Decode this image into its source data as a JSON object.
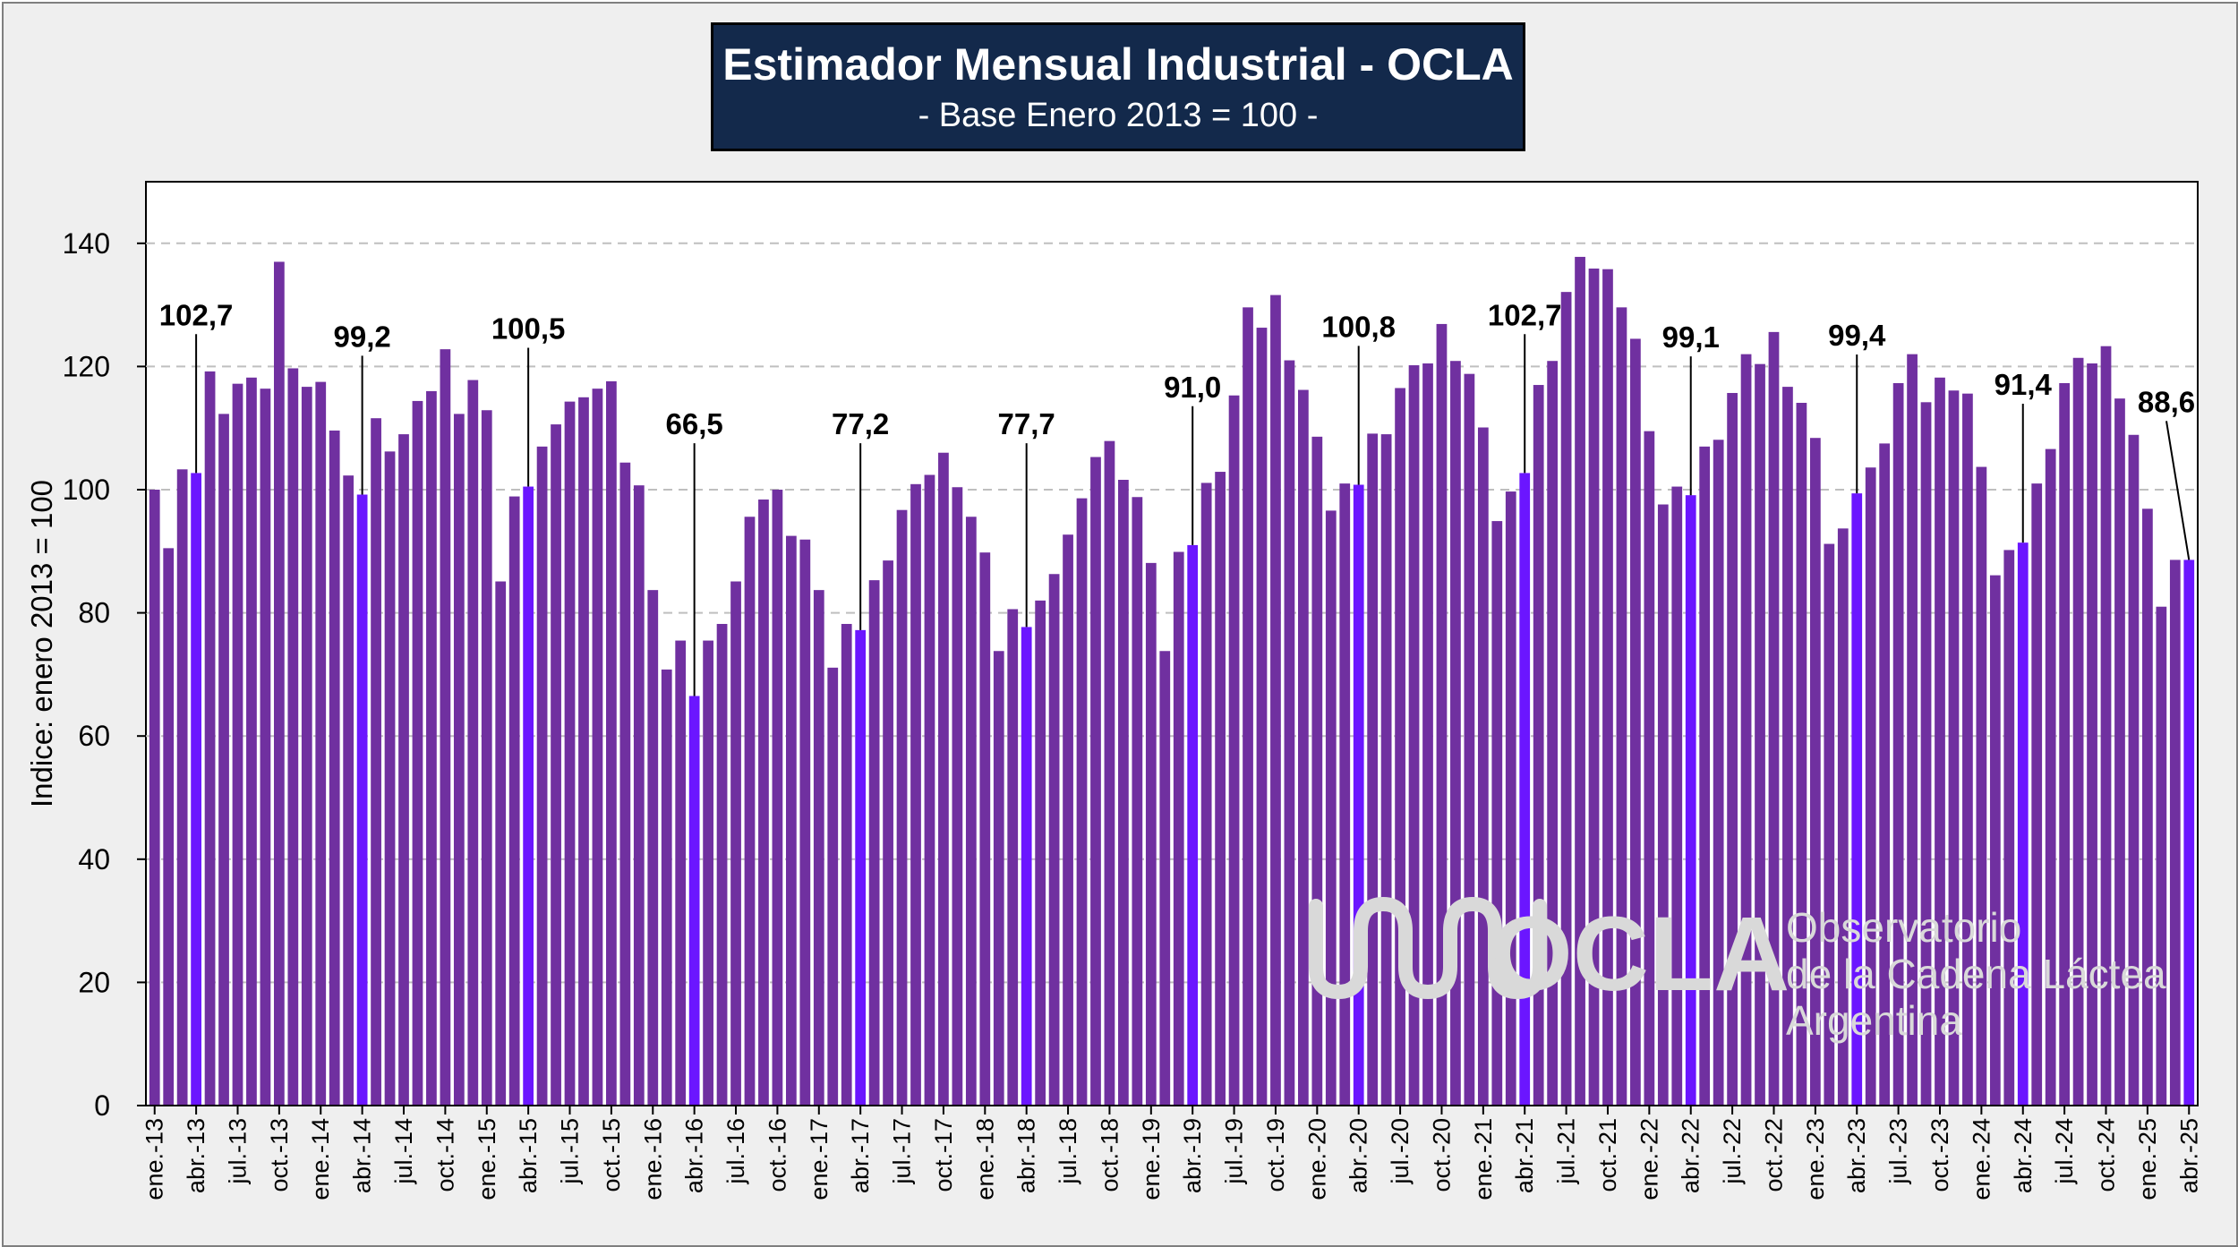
{
  "header": {
    "title": "Estimador Mensual Industrial - OCLA",
    "subtitle": "- Base Enero 2013 = 100 -"
  },
  "watermark": {
    "name": "OCLA",
    "line1": "Observatorio",
    "line2": "de la Cadena Láctea",
    "line3": "Argentina"
  },
  "colors": {
    "bar": "#7030a0",
    "highlight": "#6b16ff",
    "title_bg": "#13294b",
    "plot_bg": "#ffffff",
    "frame_bg": "#efefef",
    "grid": "#bfbfbf"
  },
  "chart_data": {
    "type": "bar",
    "ylabel": "Indice: enero 2013 = 100",
    "ylim": [
      0,
      150
    ],
    "yticks": [
      0,
      20,
      40,
      60,
      80,
      100,
      120,
      140
    ],
    "grid": "horizontal dashed",
    "categories": [
      "ene.-13",
      "feb.-13",
      "mar.-13",
      "abr.-13",
      "may.-13",
      "jun.-13",
      "jul.-13",
      "ago.-13",
      "sep.-13",
      "oct.-13",
      "nov.-13",
      "dic.-13",
      "ene.-14",
      "feb.-14",
      "mar.-14",
      "abr.-14",
      "may.-14",
      "jun.-14",
      "jul.-14",
      "ago.-14",
      "sep.-14",
      "oct.-14",
      "nov.-14",
      "dic.-14",
      "ene.-15",
      "feb.-15",
      "mar.-15",
      "abr.-15",
      "may.-15",
      "jun.-15",
      "jul.-15",
      "ago.-15",
      "sep.-15",
      "oct.-15",
      "nov.-15",
      "dic.-15",
      "ene.-16",
      "feb.-16",
      "mar.-16",
      "abr.-16",
      "may.-16",
      "jun.-16",
      "jul.-16",
      "ago.-16",
      "sep.-16",
      "oct.-16",
      "nov.-16",
      "dic.-16",
      "ene.-17",
      "feb.-17",
      "mar.-17",
      "abr.-17",
      "may.-17",
      "jun.-17",
      "jul.-17",
      "ago.-17",
      "sep.-17",
      "oct.-17",
      "nov.-17",
      "dic.-17",
      "ene.-18",
      "feb.-18",
      "mar.-18",
      "abr.-18",
      "may.-18",
      "jun.-18",
      "jul.-18",
      "ago.-18",
      "sep.-18",
      "oct.-18",
      "nov.-18",
      "dic.-18",
      "ene.-19",
      "feb.-19",
      "mar.-19",
      "abr.-19",
      "may.-19",
      "jun.-19",
      "jul.-19",
      "ago.-19",
      "sep.-19",
      "oct.-19",
      "nov.-19",
      "dic.-19",
      "ene.-20",
      "feb.-20",
      "mar.-20",
      "abr.-20",
      "may.-20",
      "jun.-20",
      "jul.-20",
      "ago.-20",
      "sep.-20",
      "oct.-20",
      "nov.-20",
      "dic.-20",
      "ene.-21",
      "feb.-21",
      "mar.-21",
      "abr.-21",
      "may.-21",
      "jun.-21",
      "jul.-21",
      "ago.-21",
      "sep.-21",
      "oct.-21",
      "nov.-21",
      "dic.-21",
      "ene.-22",
      "feb.-22",
      "mar.-22",
      "abr.-22",
      "may.-22",
      "jun.-22",
      "jul.-22",
      "ago.-22",
      "sep.-22",
      "oct.-22",
      "nov.-22",
      "dic.-22",
      "ene.-23",
      "feb.-23",
      "mar.-23",
      "abr.-23",
      "may.-23",
      "jun.-23",
      "jul.-23",
      "ago.-23",
      "sep.-23",
      "oct.-23",
      "nov.-23",
      "dic.-23",
      "ene.-24",
      "feb.-24",
      "mar.-24",
      "abr.-24",
      "may.-24",
      "jun.-24",
      "jul.-24",
      "ago.-24",
      "sep.-24",
      "oct.-24",
      "nov.-24",
      "dic.-24",
      "ene.-25",
      "feb.-25",
      "mar.-25",
      "abr.-25"
    ],
    "visible_tick_labels": [
      "ene.-13",
      "abr.-13",
      "jul.-13",
      "oct.-13",
      "ene.-14",
      "abr.-14",
      "jul.-14",
      "oct.-14",
      "ene.-15",
      "abr.-15",
      "jul.-15",
      "oct.-15",
      "ene.-16",
      "abr.-16",
      "jul.-16",
      "oct.-16",
      "ene.-17",
      "abr.-17",
      "jul.-17",
      "oct.-17",
      "ene.-18",
      "abr.-18",
      "jul.-18",
      "oct.-18",
      "ene.-19",
      "abr.-19",
      "jul.-19",
      "oct.-19",
      "ene.-20",
      "abr.-20",
      "jul.-20",
      "oct.-20",
      "ene.-21",
      "abr.-21",
      "jul.-21",
      "oct.-21",
      "ene.-22",
      "abr.-22",
      "jul.-22",
      "oct.-22",
      "ene.-23",
      "abr.-23",
      "jul.-23",
      "oct.-23",
      "ene.-24",
      "abr.-24",
      "jul.-24",
      "oct.-24",
      "ene.-25",
      "abr.-25"
    ],
    "values": [
      100,
      90.5,
      103.3,
      102.7,
      119.2,
      112.3,
      117.2,
      118.2,
      116.4,
      137,
      119.7,
      116.7,
      117.5,
      109.6,
      102.3,
      99.2,
      111.6,
      106.2,
      109,
      114.4,
      116,
      122.8,
      112.3,
      117.8,
      112.9,
      85.1,
      98.9,
      100.5,
      107,
      110.6,
      114.3,
      115,
      116.4,
      117.6,
      104.4,
      100.7,
      83.7,
      70.8,
      75.5,
      66.5,
      75.5,
      78.2,
      85.1,
      95.6,
      98.4,
      100,
      92.5,
      91.9,
      83.7,
      71.1,
      78.2,
      77.2,
      85.3,
      88.5,
      96.7,
      100.9,
      102.4,
      106,
      100.4,
      95.6,
      89.8,
      73.8,
      80.6,
      77.7,
      82,
      86.3,
      92.7,
      98.6,
      105.3,
      107.9,
      101.6,
      98.8,
      88.1,
      73.8,
      89.9,
      91,
      101.1,
      102.9,
      115.3,
      129.6,
      126.3,
      131.6,
      121,
      116.2,
      108.6,
      96.6,
      101,
      100.8,
      109.1,
      109,
      116.5,
      120.2,
      120.5,
      126.9,
      120.9,
      118.8,
      110.1,
      94.9,
      99.7,
      102.7,
      117,
      120.9,
      132.1,
      137.8,
      135.9,
      135.8,
      129.6,
      124.5,
      109.5,
      97.6,
      100.5,
      99.1,
      107,
      108.1,
      115.7,
      122,
      120.4,
      125.6,
      116.7,
      114.1,
      108.4,
      91.2,
      93.7,
      99.4,
      103.6,
      107.5,
      117.3,
      122,
      114.2,
      118.2,
      116.1,
      115.6,
      103.7,
      86.1,
      90.2,
      91.4,
      101,
      106.6,
      117.3,
      121.4,
      120.5,
      123.3,
      114.8,
      108.9,
      96.9,
      81,
      88.6,
      88.6
    ],
    "highlighted_bars": [
      "abr.-13",
      "abr.-14",
      "abr.-15",
      "abr.-16",
      "abr.-17",
      "abr.-18",
      "abr.-19",
      "abr.-20",
      "abr.-21",
      "abr.-22",
      "abr.-23",
      "abr.-24",
      "abr.-25"
    ],
    "annotations": [
      {
        "category": "abr.-13",
        "label": "102,7"
      },
      {
        "category": "abr.-14",
        "label": "99,2"
      },
      {
        "category": "abr.-15",
        "label": "100,5"
      },
      {
        "category": "abr.-16",
        "label": "66,5"
      },
      {
        "category": "abr.-17",
        "label": "77,2"
      },
      {
        "category": "abr.-18",
        "label": "77,7"
      },
      {
        "category": "abr.-19",
        "label": "91,0"
      },
      {
        "category": "abr.-20",
        "label": "100,8"
      },
      {
        "category": "abr.-21",
        "label": "102,7"
      },
      {
        "category": "abr.-22",
        "label": "99,1"
      },
      {
        "category": "abr.-23",
        "label": "99,4"
      },
      {
        "category": "abr.-24",
        "label": "91,4"
      },
      {
        "category": "abr.-25",
        "label": "88,6"
      }
    ]
  }
}
